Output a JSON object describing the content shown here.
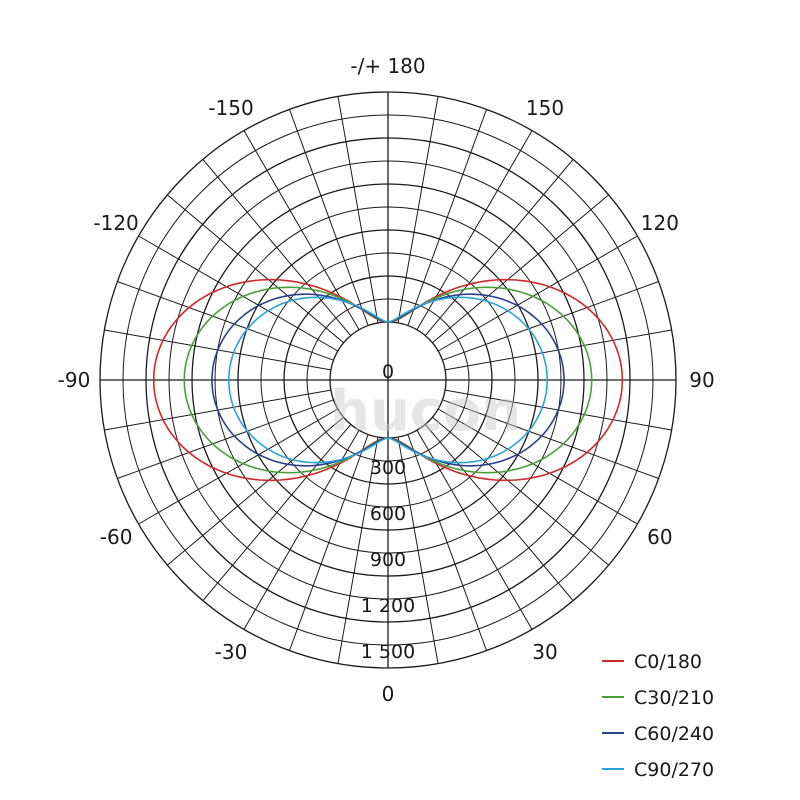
{
  "chart_data": {
    "type": "polar",
    "title": "",
    "angle_labels": [
      {
        "angle": 180,
        "label": "-/+ 180"
      },
      {
        "angle": 150,
        "label": "150"
      },
      {
        "angle": 120,
        "label": "120"
      },
      {
        "angle": 90,
        "label": "90"
      },
      {
        "angle": 60,
        "label": "60"
      },
      {
        "angle": 30,
        "label": "30"
      },
      {
        "angle": 0,
        "label": "0"
      },
      {
        "angle": -30,
        "label": "-30"
      },
      {
        "angle": -60,
        "label": "-60"
      },
      {
        "angle": -90,
        "label": "-90"
      },
      {
        "angle": -120,
        "label": "-120"
      },
      {
        "angle": -150,
        "label": "-150"
      }
    ],
    "radial_ticks": [
      {
        "value": 0,
        "label": "0"
      },
      {
        "value": 300,
        "label": "300"
      },
      {
        "value": 600,
        "label": "600"
      },
      {
        "value": 900,
        "label": "900"
      },
      {
        "value": 1200,
        "label": "1 200"
      },
      {
        "value": 1500,
        "label": "1 500"
      }
    ],
    "r_max": 1500,
    "grid": true,
    "legend_position": "bottom-right",
    "watermark": "hucon",
    "series": [
      {
        "name": "C0/180",
        "color": "#cc2a2a",
        "peak_angle": 90,
        "peak_value": 1150,
        "spread": 2.2
      },
      {
        "name": "C30/210",
        "color": "#4a9e3a",
        "peak_angle": 90,
        "peak_value": 950,
        "spread": 2.0
      },
      {
        "name": "C60/240",
        "color": "#2b3f8a",
        "peak_angle": 90,
        "peak_value": 770,
        "spread": 1.8
      },
      {
        "name": "C90/270",
        "color": "#2aa3d8",
        "peak_angle": 90,
        "peak_value": 660,
        "spread": 1.6
      }
    ]
  }
}
